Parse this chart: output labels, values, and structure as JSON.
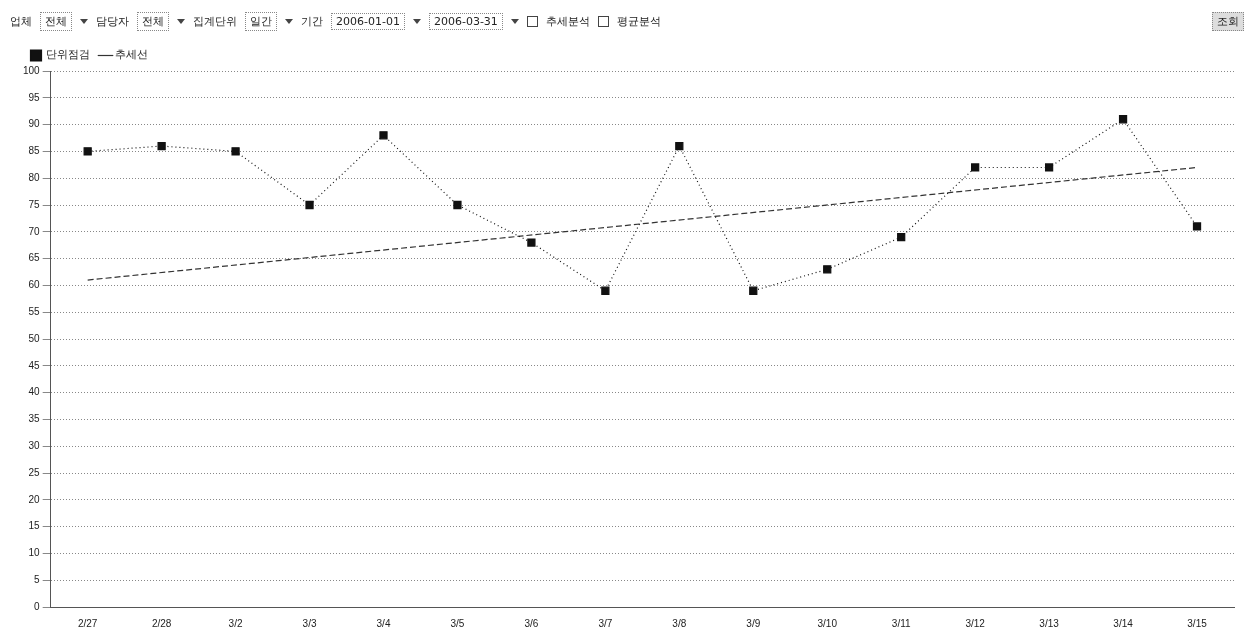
{
  "chart_data": {
    "type": "line",
    "categories": [
      "2/27",
      "2/28",
      "3/2",
      "3/3",
      "3/4",
      "3/5",
      "3/6",
      "3/7",
      "3/8",
      "3/9",
      "3/10",
      "3/11",
      "3/12",
      "3/13",
      "3/14",
      "3/15"
    ],
    "series": [
      {
        "name": "단위점검",
        "color": "#111111",
        "marker": "square",
        "line_style": "dotted",
        "values": [
          85,
          86,
          85,
          75,
          88,
          75,
          68,
          59,
          86,
          59,
          63,
          69,
          82,
          82,
          91,
          71
        ]
      },
      {
        "name": "추세선",
        "color": "#333333",
        "marker": "none",
        "line_style": "dashed",
        "values": [
          61,
          null,
          null,
          null,
          null,
          null,
          null,
          null,
          null,
          null,
          null,
          null,
          null,
          null,
          null,
          82
        ]
      }
    ],
    "ylim": [
      0,
      100
    ],
    "yticks": [
      0,
      5,
      10,
      15,
      20,
      25,
      30,
      35,
      40,
      45,
      50,
      55,
      60,
      65,
      70,
      75,
      80,
      85,
      90,
      95,
      100
    ],
    "grid": "y",
    "legend": "top left",
    "annotations": [
      "업체",
      "전체",
      "담당자",
      "전체",
      "집계단위",
      "일간",
      "기간",
      "2006-01-01",
      "2006-03-31",
      "추세분석",
      "평균분석",
      "조회"
    ]
  }
}
